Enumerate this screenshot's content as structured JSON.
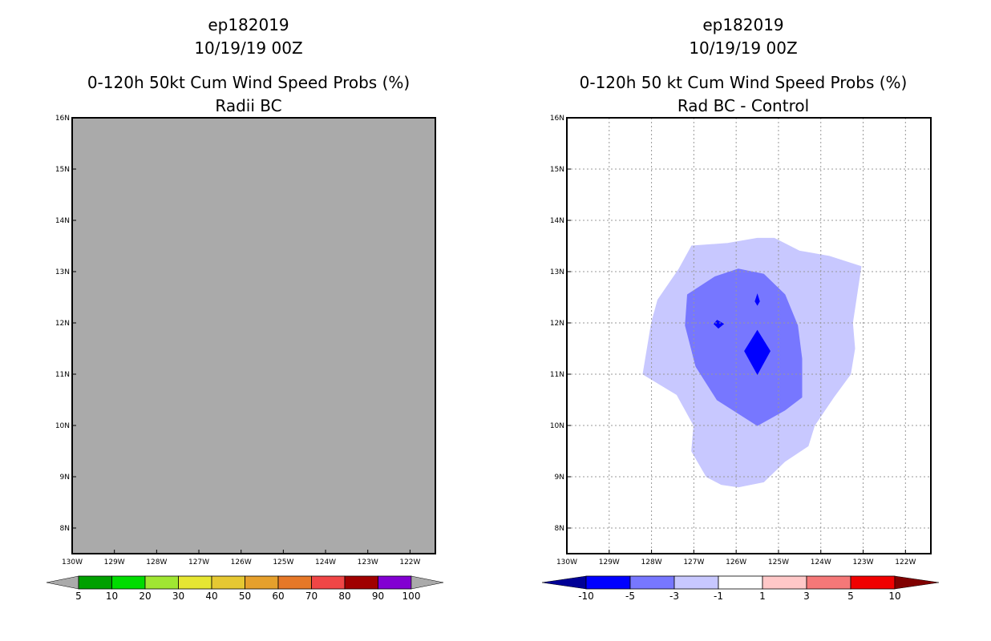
{
  "chart_data": [
    {
      "type": "map",
      "title_lines": [
        "ep182019",
        "10/19/19 00Z",
        "0-120h 50kt Cum Wind Speed Probs (%)",
        "Radii BC"
      ],
      "x_ticks": [
        "130W",
        "129W",
        "128W",
        "127W",
        "126W",
        "125W",
        "124W",
        "123W",
        "122W"
      ],
      "y_ticks": [
        "16N",
        "15N",
        "14N",
        "13N",
        "12N",
        "11N",
        "10N",
        "9N",
        "8N"
      ],
      "xlim": [
        -130,
        -121.4
      ],
      "ylim": [
        7.5,
        16
      ],
      "fill_color": "#aaaaaa",
      "grid": false,
      "colorbar": {
        "colors": [
          "#00a000",
          "#00dc00",
          "#a0e632",
          "#e6e632",
          "#e6c832",
          "#e6a02c",
          "#e67828",
          "#f04646",
          "#a00000",
          "#8200d2"
        ],
        "end_colors": [
          "#aaaaaa",
          "#aaaaaa"
        ],
        "labels": [
          "5",
          "10",
          "20",
          "30",
          "40",
          "50",
          "60",
          "70",
          "80",
          "90",
          "100"
        ]
      }
    },
    {
      "type": "map",
      "title_lines": [
        "ep182019",
        "10/19/19 00Z",
        "0-120h 50 kt Cum Wind Speed Probs (%)",
        "Rad BC - Control"
      ],
      "x_ticks": [
        "130W",
        "129W",
        "128W",
        "127W",
        "126W",
        "125W",
        "124W",
        "123W",
        "122W"
      ],
      "y_ticks": [
        "16N",
        "15N",
        "14N",
        "13N",
        "12N",
        "11N",
        "10N",
        "9N",
        "8N"
      ],
      "xlim": [
        -130,
        -121.4
      ],
      "ylim": [
        7.5,
        16
      ],
      "grid": true,
      "contours": [
        {
          "level": "-1 to -3",
          "color": "#c8c8ff",
          "points": [
            [
              -127.05,
              13.5
            ],
            [
              -126.2,
              13.55
            ],
            [
              -125.5,
              13.65
            ],
            [
              -125.1,
              13.65
            ],
            [
              -124.5,
              13.4
            ],
            [
              -123.8,
              13.3
            ],
            [
              -123.05,
              13.1
            ],
            [
              -123.25,
              12.0
            ],
            [
              -123.2,
              11.5
            ],
            [
              -123.3,
              11.0
            ],
            [
              -123.7,
              10.55
            ],
            [
              -124.15,
              10.0
            ],
            [
              -124.3,
              9.6
            ],
            [
              -124.85,
              9.3
            ],
            [
              -125.35,
              8.9
            ],
            [
              -125.95,
              8.8
            ],
            [
              -126.35,
              8.85
            ],
            [
              -126.7,
              9.0
            ],
            [
              -127.05,
              9.5
            ],
            [
              -127.0,
              10.0
            ],
            [
              -127.4,
              10.6
            ],
            [
              -128.2,
              11.0
            ],
            [
              -128.0,
              12.0
            ],
            [
              -127.85,
              12.45
            ],
            [
              -127.35,
              13.05
            ]
          ]
        },
        {
          "level": "-3 to -5",
          "color": "#7777ff",
          "points": [
            [
              -125.95,
              13.05
            ],
            [
              -125.35,
              12.95
            ],
            [
              -124.85,
              12.55
            ],
            [
              -124.55,
              11.95
            ],
            [
              -124.45,
              11.3
            ],
            [
              -124.45,
              10.55
            ],
            [
              -124.85,
              10.3
            ],
            [
              -125.5,
              10.0
            ],
            [
              -126.45,
              10.5
            ],
            [
              -126.95,
              11.15
            ],
            [
              -127.2,
              11.95
            ],
            [
              -127.15,
              12.55
            ],
            [
              -126.5,
              12.9
            ]
          ]
        },
        {
          "level": "-5 to -10",
          "color": "#0000ff",
          "points": [
            [
              -125.5,
              11.85
            ],
            [
              -125.2,
              11.45
            ],
            [
              -125.5,
              11.0
            ],
            [
              -125.8,
              11.45
            ]
          ]
        },
        {
          "level": "-5 to -10",
          "color": "#0000ff",
          "points": [
            [
              -126.45,
              12.05
            ],
            [
              -126.3,
              11.98
            ],
            [
              -126.42,
              11.9
            ],
            [
              -126.52,
              11.98
            ]
          ]
        },
        {
          "level": "-5 to -10",
          "color": "#0000ff",
          "points": [
            [
              -125.5,
              12.55
            ],
            [
              -125.45,
              12.42
            ],
            [
              -125.5,
              12.35
            ],
            [
              -125.55,
              12.42
            ]
          ]
        }
      ],
      "colorbar": {
        "colors": [
          "#0000ff",
          "#7777ff",
          "#c8c8ff",
          "#ffffff",
          "#ffc8c8",
          "#f57878",
          "#f00000"
        ],
        "end_colors": [
          "#000096",
          "#800000"
        ],
        "labels": [
          "-10",
          "-5",
          "-3",
          "-1",
          "1",
          "3",
          "5",
          "10"
        ]
      }
    }
  ]
}
